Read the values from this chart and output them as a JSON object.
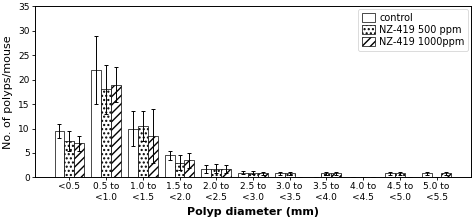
{
  "categories": [
    "<0.5",
    "0.5 to\n<1.0",
    "1.0 to\n<1.5",
    "1.5 to\n<2.0",
    "2.0 to\n<2.5",
    "2.5 to\n<3.0",
    "3.0 to\n<3.5",
    "3.5 to\n<4.0",
    "4.0 to\n<4.5",
    "4.5 to\n<5.0",
    "5.0 to\n<5.5"
  ],
  "control": [
    9.5,
    22.0,
    10.0,
    4.5,
    1.8,
    1.0,
    0.8,
    0.0,
    0.0,
    0.8,
    0.8
  ],
  "nz500": [
    7.5,
    18.0,
    10.5,
    3.0,
    1.8,
    1.0,
    0.8,
    0.8,
    0.0,
    0.8,
    0.0
  ],
  "nz1000": [
    7.0,
    19.0,
    8.5,
    3.5,
    1.8,
    0.8,
    0.0,
    0.8,
    0.0,
    0.0,
    0.8
  ],
  "control_err": [
    1.5,
    7.0,
    3.5,
    1.0,
    0.8,
    0.3,
    0.3,
    0.0,
    0.0,
    0.3,
    0.3
  ],
  "nz500_err": [
    2.0,
    5.0,
    3.0,
    1.5,
    1.0,
    0.3,
    0.3,
    0.3,
    0.0,
    0.3,
    0.0
  ],
  "nz1000_err": [
    1.5,
    3.5,
    5.5,
    1.5,
    0.8,
    0.3,
    0.0,
    0.3,
    0.0,
    0.0,
    0.3
  ],
  "ylabel": "No. of polyps/mouse",
  "xlabel": "Polyp diameter (mm)",
  "ylim": [
    0,
    35
  ],
  "yticks": [
    0,
    5,
    10,
    15,
    20,
    25,
    30,
    35
  ],
  "legend_labels": [
    "control",
    "NZ-419 500 ppm",
    "NZ-419 1000ppm"
  ],
  "bar_width": 0.27,
  "color_control": "#ffffff",
  "color_nz500": "#ffffff",
  "color_nz1000": "#ffffff",
  "hatch_control": "",
  "hatch_nz500": "....",
  "hatch_nz1000": "////",
  "edgecolor": "#000000",
  "axis_fontsize": 8,
  "tick_fontsize": 6.5,
  "legend_fontsize": 7
}
